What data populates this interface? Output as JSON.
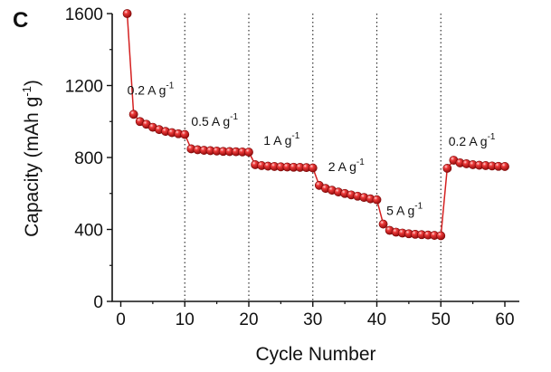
{
  "chart_data": {
    "type": "line",
    "panel_label": "C",
    "xlabel": "Cycle Number",
    "ylabel": "Capacity (mAh g-1)",
    "xlim": [
      0,
      60
    ],
    "ylim": [
      0,
      1600
    ],
    "xticks": [
      0,
      10,
      20,
      30,
      40,
      50,
      60
    ],
    "yticks": [
      0,
      400,
      800,
      1200,
      1600
    ],
    "grid": false,
    "marker_color": "#d42020",
    "segment_dividers_x": [
      10,
      20,
      30,
      40,
      50
    ],
    "annotations": [
      {
        "text": "0.2 A g",
        "sup": "-1",
        "x": 1,
        "y": 1150
      },
      {
        "text": "0.5 A g",
        "sup": "-1",
        "x": 11,
        "y": 975
      },
      {
        "text": "1 A g",
        "sup": "-1",
        "x": 22.3,
        "y": 870
      },
      {
        "text": "2 A g",
        "sup": "-1",
        "x": 32.4,
        "y": 725
      },
      {
        "text": "5 A g",
        "sup": "-1",
        "x": 41.5,
        "y": 480
      },
      {
        "text": "0.2 A g",
        "sup": "-1",
        "x": 51.2,
        "y": 865
      }
    ],
    "series": [
      {
        "x": [
          1,
          2,
          3,
          4,
          5,
          6,
          7,
          8,
          9,
          10,
          11,
          12,
          13,
          14,
          15,
          16,
          17,
          18,
          19,
          20,
          21,
          22,
          23,
          24,
          25,
          26,
          27,
          28,
          29,
          30,
          31,
          32,
          33,
          34,
          35,
          36,
          37,
          38,
          39,
          40,
          41,
          42,
          43,
          44,
          45,
          46,
          47,
          48,
          49,
          50,
          51,
          52,
          53,
          54,
          55,
          56,
          57,
          58,
          59,
          60
        ],
        "values": [
          1600,
          1040,
          1000,
          985,
          968,
          955,
          945,
          938,
          932,
          928,
          848,
          843,
          840,
          838,
          836,
          834,
          833,
          832,
          831,
          830,
          760,
          755,
          752,
          750,
          748,
          747,
          746,
          745,
          744,
          742,
          645,
          628,
          618,
          608,
          600,
          592,
          585,
          578,
          570,
          565,
          430,
          395,
          385,
          380,
          376,
          373,
          371,
          369,
          367,
          365,
          740,
          785,
          770,
          765,
          760,
          757,
          755,
          753,
          751,
          750
        ]
      }
    ]
  }
}
